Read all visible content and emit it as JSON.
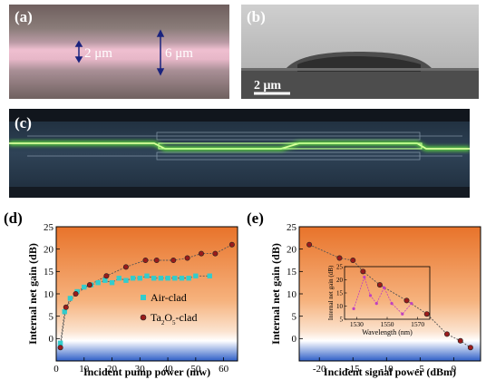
{
  "panel_a": {
    "label": "(a)",
    "annotations": [
      "2 μm",
      "6 μm"
    ],
    "colors": {
      "background": "#7e6f6c",
      "center_band": "#e7b7c8"
    }
  },
  "panel_b": {
    "label": "(b)",
    "scale_bar": "2 μm",
    "colors": {
      "top_surface": "#d7d7d7",
      "substrate": "#4a4a4a"
    }
  },
  "panel_c": {
    "label": "(c)",
    "colors": {
      "background": "#273848",
      "waveguide_light": "#6cff3a"
    }
  },
  "chart_data": [
    {
      "panel_label": "(d)",
      "type": "scatter",
      "xlabel": "Incident pump power (mw)",
      "ylabel": "Internal net gain (dB)",
      "xlim": [
        0,
        65
      ],
      "ylim": [
        -5,
        25
      ],
      "xticks": [
        0,
        10,
        20,
        30,
        40,
        50,
        60
      ],
      "yticks": [
        0,
        5,
        10,
        15,
        20,
        25
      ],
      "legend_position": "center-right",
      "series": [
        {
          "name": "Air-clad",
          "color": "#33cccc",
          "marker": "square",
          "x": [
            1.5,
            3,
            5,
            7.5,
            10,
            12.5,
            15,
            17.5,
            20,
            22.5,
            25,
            27.5,
            30,
            32.5,
            35,
            37.5,
            40,
            42.5,
            45,
            47.5,
            50,
            55
          ],
          "y": [
            -1,
            6,
            9,
            10.5,
            11.5,
            12,
            12.5,
            13,
            12.5,
            13.5,
            13,
            13.5,
            13.5,
            14,
            13.5,
            13.5,
            13.5,
            13.5,
            13.5,
            13.5,
            14,
            14
          ]
        },
        {
          "name": "Ta2O5-clad",
          "legend_html": "Ta<tspan baseline-shift='sub' font-size='7'>2</tspan>O<tspan baseline-shift='sub' font-size='7'>5</tspan>-clad",
          "color": "#9b1b1b",
          "marker": "circle",
          "x": [
            1.5,
            3.5,
            7,
            12,
            18,
            25,
            32,
            36,
            42,
            47,
            52,
            57,
            63
          ],
          "y": [
            -2,
            7,
            10,
            12,
            14,
            16,
            17.5,
            17.5,
            17.5,
            18,
            19,
            19,
            21
          ]
        }
      ]
    },
    {
      "panel_label": "(e)",
      "type": "line",
      "xlabel": "Incident signal power (dBm)",
      "ylabel": "Internal net gain (dB)",
      "xlim": [
        -23,
        4
      ],
      "ylim": [
        -5,
        25
      ],
      "xticks": [
        -20,
        -15,
        -10,
        -5,
        0
      ],
      "yticks": [
        0,
        5,
        10,
        15,
        20,
        25
      ],
      "series": [
        {
          "color": "#9b1b1b",
          "marker": "circle",
          "x": [
            -21.5,
            -17,
            -15,
            -13.5,
            -11,
            -7,
            -4,
            -1,
            1,
            2.5
          ],
          "y": [
            21,
            18,
            17.5,
            15,
            12,
            8.5,
            5.5,
            1,
            -0.5,
            -2
          ]
        }
      ],
      "inset": {
        "type": "line",
        "xlabel": "Wavelength (nm)",
        "ylabel": "Internal net gain (dB)",
        "xlim": [
          1522,
          1578
        ],
        "ylim": [
          5,
          25
        ],
        "xticks": [
          1530,
          1550,
          1570
        ],
        "yticks": [
          5,
          10,
          15,
          20,
          25
        ],
        "series": [
          {
            "color": "#c040c0",
            "marker": "circle",
            "x": [
              1528,
              1535,
              1539,
              1543,
              1548,
              1553,
              1560,
              1566
            ],
            "y": [
              9,
              21,
              14,
              11,
              17,
              11,
              7,
              11
            ]
          }
        ]
      }
    }
  ]
}
